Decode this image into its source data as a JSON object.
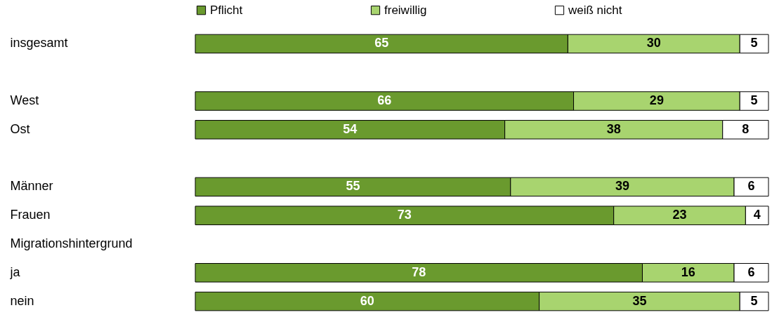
{
  "chart_data": {
    "type": "bar",
    "orientation": "horizontal",
    "stacked": true,
    "data_labels": true,
    "legend": "top",
    "categories": [
      "insgesamt",
      null,
      "West",
      "Ost",
      null,
      "Männer",
      "Frauen",
      "Migrationshintergrund",
      "ja",
      "nein"
    ],
    "series": [
      {
        "name": "Pflicht",
        "color": "#6a9a2e",
        "values": [
          65,
          null,
          66,
          54,
          null,
          55,
          73,
          null,
          78,
          60
        ]
      },
      {
        "name": "freiwillig",
        "color": "#a8d46f",
        "values": [
          30,
          null,
          29,
          38,
          null,
          39,
          23,
          null,
          16,
          35
        ]
      },
      {
        "name": "weiß nicht",
        "color": "#ffffff",
        "values": [
          5,
          null,
          5,
          8,
          null,
          6,
          4,
          null,
          6,
          5
        ]
      }
    ]
  }
}
